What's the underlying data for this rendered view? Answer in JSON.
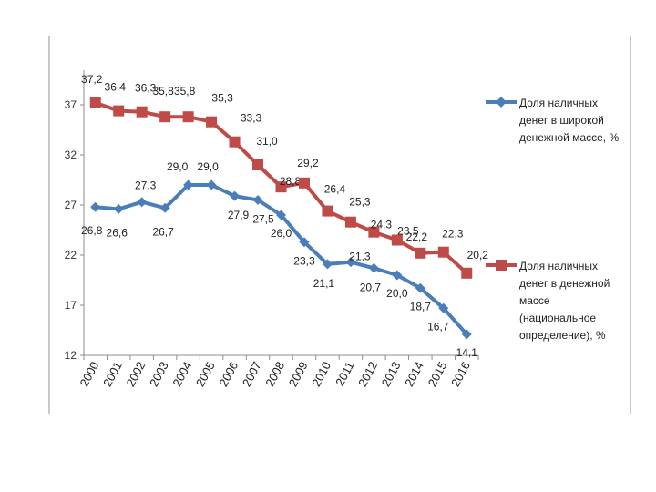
{
  "chart_data": {
    "type": "line",
    "title": "",
    "xlabel": "",
    "ylabel": "",
    "categories": [
      "2000",
      "2001",
      "2002",
      "2003",
      "2004",
      "2005",
      "2006",
      "2007",
      "2008",
      "2009",
      "2010",
      "2011",
      "2012",
      "2013",
      "2014",
      "2015",
      "2016"
    ],
    "ylim": [
      12,
      40
    ],
    "yticks": [
      "12",
      "17",
      "22",
      "27",
      "32",
      "37"
    ],
    "grid": false,
    "legend_position": "right",
    "series": [
      {
        "name": "Доля наличных денег в широкой денежной массе, %",
        "color": "#4a7ebb",
        "marker": "diamond",
        "values": [
          26.8,
          26.6,
          27.3,
          26.7,
          29.0,
          29.0,
          27.9,
          27.5,
          26.0,
          23.3,
          21.1,
          21.3,
          20.7,
          20.0,
          18.7,
          16.7,
          14.1
        ],
        "labels": [
          "26,8",
          "26,6",
          "27,3",
          "26,7",
          "29,0",
          "29,0",
          "27,9",
          "27,5",
          "26,0",
          "23,3",
          "21,1",
          "21,3",
          "20,7",
          "20,0",
          "18,7",
          "16,7",
          "14,1"
        ]
      },
      {
        "name": "Доля наличных денег в денежной массе (национальное определение), %",
        "color": "#be4b48",
        "marker": "square",
        "values": [
          37.2,
          36.4,
          36.3,
          35.8,
          35.8,
          35.3,
          33.3,
          31.0,
          28.8,
          29.2,
          26.4,
          25.3,
          24.3,
          23.5,
          22.2,
          22.3,
          20.2
        ],
        "labels": [
          "37,2",
          "36,4",
          "36,3",
          "35,8",
          "35,8",
          "35,3",
          "33,3",
          "31,0",
          "28,8",
          "29,2",
          "26,4",
          "25,3",
          "24,3",
          "23,5",
          "22,2",
          "22,3",
          "20,2"
        ]
      }
    ],
    "legend_lines": [
      [
        "Доля наличных",
        "денег в широкой",
        "денежной массе, %"
      ],
      [
        "Доля наличных",
        "денег в денежной",
        "массе",
        "(национальное",
        "определение), %"
      ]
    ]
  }
}
